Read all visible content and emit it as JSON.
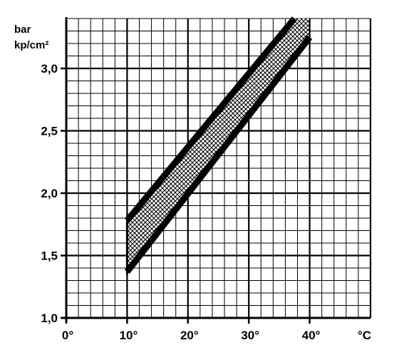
{
  "chart_data": {
    "type": "area",
    "title": "",
    "y_unit_labels": [
      "bar",
      "kp/cm²"
    ],
    "x_unit_label": "°C",
    "xlim": [
      0,
      50
    ],
    "ylim": [
      1.0,
      3.4
    ],
    "x_ticks": [
      0,
      10,
      20,
      30,
      40
    ],
    "x_tick_labels": [
      "0°",
      "10°",
      "20°",
      "30°",
      "40°"
    ],
    "y_ticks": [
      1.0,
      1.5,
      2.0,
      2.5,
      3.0
    ],
    "y_tick_labels": [
      "1,0",
      "1,5",
      "2,0",
      "2,5",
      "3,0"
    ],
    "grid": true,
    "band": {
      "upper": {
        "x": [
          10,
          37.5
        ],
        "y": [
          1.78,
          3.4
        ]
      },
      "lower": {
        "x": [
          10,
          40
        ],
        "y": [
          1.37,
          3.25
        ]
      }
    }
  }
}
